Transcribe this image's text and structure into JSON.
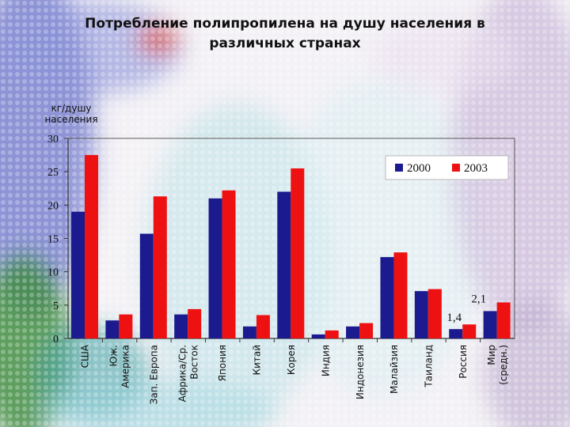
{
  "chart_data": {
    "type": "bar",
    "title_line1": "Потребление полипропилена на душу населения в",
    "title_line2": "различных странах",
    "ylabel_line1": "кг/душу",
    "ylabel_line2": "населения",
    "ylim": [
      0,
      30
    ],
    "yticks": [
      "0",
      "5",
      "10",
      "15",
      "20",
      "25",
      "30"
    ],
    "categories": [
      [
        "США"
      ],
      [
        "Юж.",
        "Америка"
      ],
      [
        "Зап. Европа"
      ],
      [
        "Африка/Ср.",
        "Восток"
      ],
      [
        "Япония"
      ],
      [
        "Китай"
      ],
      [
        "Корея"
      ],
      [
        "Индия"
      ],
      [
        "Индонезия"
      ],
      [
        "Малайзия"
      ],
      [
        "Таиланд"
      ],
      [
        "Россия"
      ],
      [
        "Мир",
        "(средн.)"
      ]
    ],
    "series": [
      {
        "name": "2000",
        "color": "#1b1b8f",
        "values": [
          19.0,
          2.7,
          15.7,
          3.6,
          21.0,
          1.8,
          22.0,
          0.6,
          1.8,
          12.2,
          7.1,
          1.4,
          4.1
        ]
      },
      {
        "name": "2003",
        "color": "#ee1111",
        "values": [
          27.5,
          3.6,
          21.3,
          4.4,
          22.2,
          3.5,
          25.5,
          1.2,
          2.3,
          12.9,
          7.4,
          2.1,
          5.4
        ]
      }
    ],
    "annotations": [
      {
        "text": "2,1",
        "category_index": 11,
        "series_index": 1
      },
      {
        "text": "1,4",
        "category_index": 11,
        "series_index": 0
      }
    ],
    "legend_position": "top-right"
  }
}
